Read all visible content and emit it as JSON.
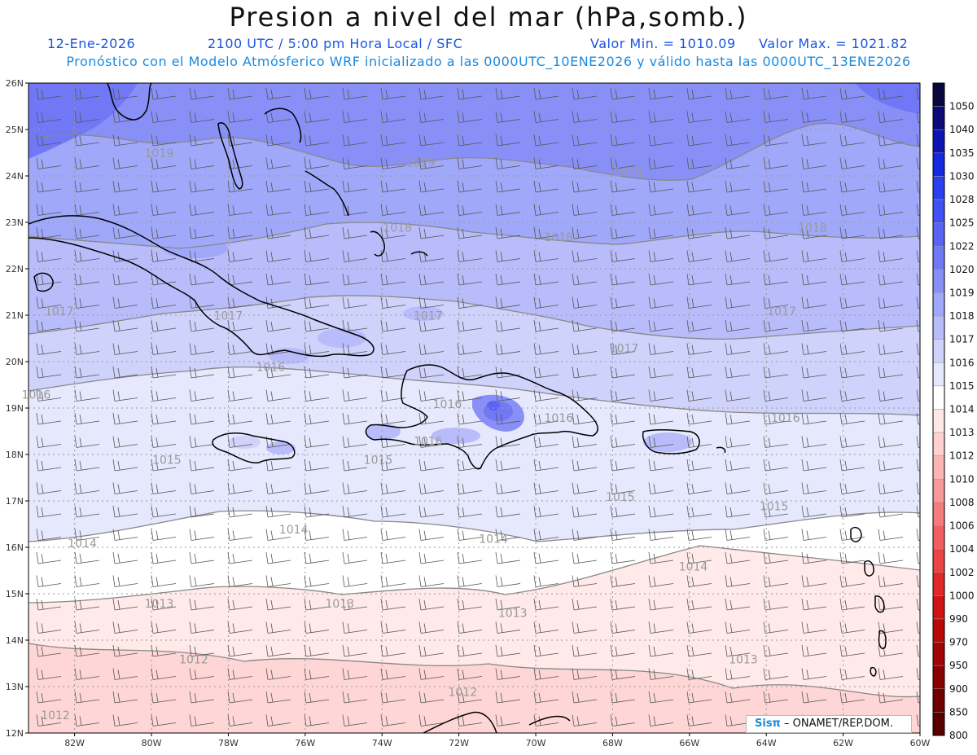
{
  "title": "Presion a nivel del mar (hPa,somb.)",
  "date": "12-Ene-2026",
  "time_info": "2100 UTC / 5:00 pm Hora Local / SFC",
  "valor_min": "Valor Min. = 1010.09",
  "valor_max": "Valor Max. = 1021.82",
  "forecast_info": "Pronóstico con el Modelo Atmósferico WRF inicializado a las 0000UTC_10ENE2026 y válido hasta las  0000UTC_13ENE2026",
  "map": {
    "lat_labels": [
      "26N",
      "25N",
      "24N",
      "23N",
      "22N",
      "21N",
      "20N",
      "19N",
      "18N",
      "17N",
      "16N",
      "15N",
      "14N",
      "13N",
      "12N"
    ],
    "lon_labels": [
      "82W",
      "80W",
      "78W",
      "76W",
      "74W",
      "72W",
      "70W",
      "68W",
      "66W",
      "64W",
      "62W",
      "60W"
    ],
    "contour_labels": [
      {
        "text": "1019",
        "lon": -79.8,
        "lat": 24.4
      },
      {
        "text": "1019",
        "lon": -73.0,
        "lat": 24.2
      },
      {
        "text": "1019",
        "lon": -67.6,
        "lat": 24.0
      },
      {
        "text": "1018",
        "lon": -73.6,
        "lat": 22.8
      },
      {
        "text": "1018",
        "lon": -69.4,
        "lat": 22.6
      },
      {
        "text": "1018",
        "lon": -62.8,
        "lat": 22.8
      },
      {
        "text": "1017",
        "lon": -82.4,
        "lat": 21.0
      },
      {
        "text": "1017",
        "lon": -78.0,
        "lat": 20.9
      },
      {
        "text": "1017",
        "lon": -72.8,
        "lat": 20.9
      },
      {
        "text": "1017",
        "lon": -67.7,
        "lat": 20.2
      },
      {
        "text": "1017",
        "lon": -63.6,
        "lat": 21.0
      },
      {
        "text": "1016",
        "lon": -83.0,
        "lat": 19.2
      },
      {
        "text": "1016",
        "lon": -76.9,
        "lat": 19.8
      },
      {
        "text": "1016",
        "lon": -72.3,
        "lat": 19.0
      },
      {
        "text": "1016",
        "lon": -69.4,
        "lat": 18.7
      },
      {
        "text": "1016",
        "lon": -63.5,
        "lat": 18.7
      },
      {
        "text": "1016",
        "lon": -72.8,
        "lat": 18.2
      },
      {
        "text": "1015",
        "lon": -79.6,
        "lat": 17.8
      },
      {
        "text": "1015",
        "lon": -74.1,
        "lat": 17.8
      },
      {
        "text": "1015",
        "lon": -67.8,
        "lat": 17.0
      },
      {
        "text": "1015",
        "lon": -63.8,
        "lat": 16.8
      },
      {
        "text": "1014",
        "lon": -81.8,
        "lat": 16.0
      },
      {
        "text": "1014",
        "lon": -76.3,
        "lat": 16.3
      },
      {
        "text": "1014",
        "lon": -71.1,
        "lat": 16.1
      },
      {
        "text": "1014",
        "lon": -65.9,
        "lat": 15.5
      },
      {
        "text": "1013",
        "lon": -79.8,
        "lat": 14.7
      },
      {
        "text": "1013",
        "lon": -75.1,
        "lat": 14.7
      },
      {
        "text": "1013",
        "lon": -70.6,
        "lat": 14.5
      },
      {
        "text": "1013",
        "lon": -64.6,
        "lat": 13.5
      },
      {
        "text": "1012",
        "lon": -78.9,
        "lat": 13.5
      },
      {
        "text": "1012",
        "lon": -82.5,
        "lat": 12.3
      },
      {
        "text": "1012",
        "lon": -71.9,
        "lat": 12.8
      }
    ]
  },
  "colorbar": {
    "labels": [
      "1050",
      "1040",
      "1035",
      "1030",
      "1028",
      "1025",
      "1022",
      "1020",
      "1019",
      "1018",
      "1017",
      "1016",
      "1015",
      "1014",
      "1013",
      "1012",
      "1010",
      "1008",
      "1006",
      "1004",
      "1002",
      "1000",
      "990",
      "970",
      "950",
      "900",
      "850",
      "800"
    ],
    "colors": [
      "#08083e",
      "#0a0a78",
      "#0c14b4",
      "#1428e0",
      "#2840f0",
      "#4050f4",
      "#5a64f4",
      "#7078f6",
      "#8890f8",
      "#a0a8fa",
      "#b8bcfa",
      "#cfd2fb",
      "#e6e8fd",
      "#ffffff",
      "#ffe8e8",
      "#ffd0d0",
      "#fcb4b4",
      "#f89898",
      "#f47c7c",
      "#f06060",
      "#ea4444",
      "#e02828",
      "#d01414",
      "#b80808",
      "#a00404",
      "#880202",
      "#700000",
      "#580000"
    ]
  },
  "logo": {
    "sistema": "Sisπ",
    "org": "– ONAMET/REP.DOM."
  }
}
